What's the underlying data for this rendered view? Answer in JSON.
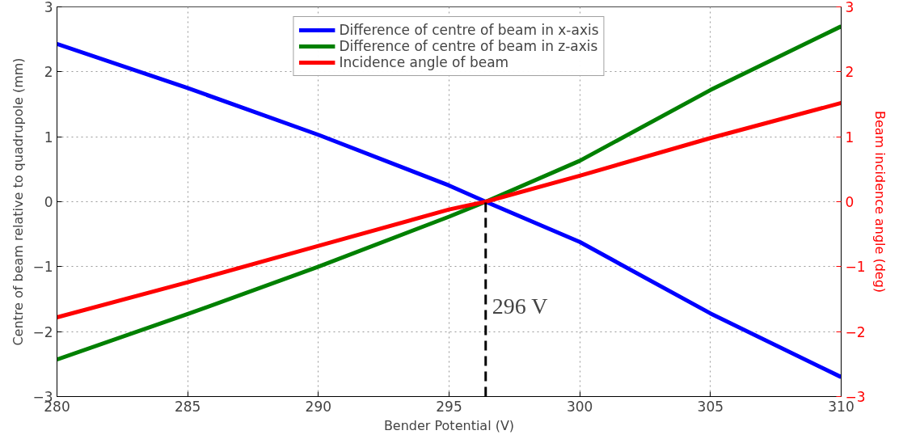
{
  "chart_data": {
    "type": "line",
    "xlabel": "Bender Potential (V)",
    "ylabel": "Centre of beam relative to quadrupole (mm)",
    "y2label": "Beam incidence angle (deg)",
    "x": [
      280,
      285,
      290,
      295,
      296.4,
      300,
      305,
      310
    ],
    "series": [
      {
        "name": "Difference of centre of beam in x-axis",
        "color": "#0000ff",
        "values": [
          2.43,
          1.75,
          1.03,
          0.25,
          0,
          -0.62,
          -1.72,
          -2.7
        ]
      },
      {
        "name": "Difference of centre of beam in z-axis",
        "color": "#008000",
        "values": [
          -2.43,
          -1.73,
          -1.0,
          -0.23,
          0,
          0.63,
          1.72,
          2.7
        ]
      },
      {
        "name": "Incidence angle of beam",
        "color": "#ff0000",
        "axis": "y2",
        "values": [
          -1.78,
          -1.24,
          -0.68,
          -0.12,
          0,
          0.4,
          0.98,
          1.52
        ]
      },
      {
        "type": "line",
        "color": "#000000",
        "line_style": "dashed",
        "x": [
          296.4,
          296.4
        ],
        "values": [
          -3,
          0
        ]
      }
    ],
    "annotations": [
      {
        "text": "296 V",
        "x": 296.4,
        "y": -1.6
      }
    ],
    "xlim": [
      280,
      310
    ],
    "xticks": [
      280,
      285,
      290,
      295,
      300,
      305,
      310
    ],
    "ylim": [
      -3,
      3
    ],
    "yticks": [
      {
        "value": -3,
        "label": "−3"
      },
      {
        "value": -2,
        "label": "−2"
      },
      {
        "value": -1,
        "label": "−1"
      },
      0,
      1,
      2,
      3
    ],
    "y2lim": [
      -3,
      3
    ],
    "y2ticks": [
      {
        "value": -3,
        "label": "−3"
      },
      {
        "value": -2,
        "label": "−2"
      },
      {
        "value": -1,
        "label": "−1"
      },
      0,
      1,
      2,
      3
    ],
    "grid": true,
    "legend": "top",
    "line_style": "solid"
  }
}
